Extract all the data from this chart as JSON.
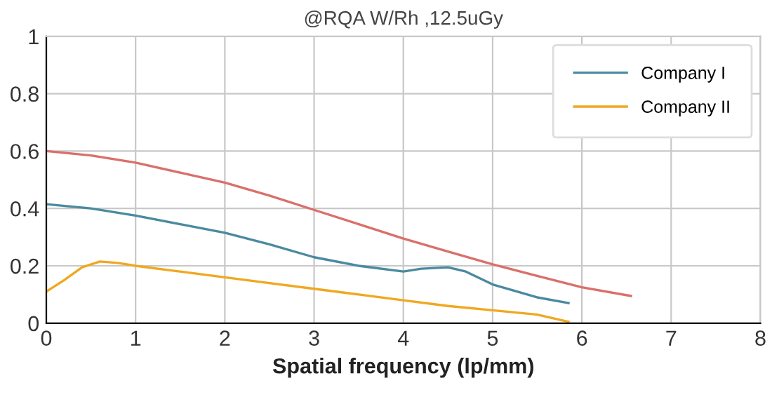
{
  "chart_data": {
    "type": "line",
    "title": "@RQA W/Rh ,12.5uGy",
    "xlabel": "Spatial frequency (lp/mm)",
    "xlim": [
      0,
      8
    ],
    "xticks": [
      0,
      1,
      2,
      3,
      4,
      5,
      6,
      7,
      8
    ],
    "ylim": [
      0,
      1
    ],
    "yticks": [
      0,
      0.2,
      0.4,
      0.6,
      0.8,
      1
    ],
    "grid": true,
    "legend": "top right",
    "marker": "none",
    "line_style": "solid",
    "series": [
      {
        "color": "#d9706a",
        "x": [
          0,
          0.5,
          1,
          1.5,
          2,
          2.5,
          3,
          3.5,
          4,
          4.5,
          5,
          5.5,
          6,
          6.55
        ],
        "values": [
          0.6,
          0.585,
          0.56,
          0.525,
          0.49,
          0.445,
          0.395,
          0.345,
          0.295,
          0.25,
          0.205,
          0.165,
          0.125,
          0.095
        ]
      },
      {
        "name": "Company I",
        "color": "#4a8aa0",
        "x": [
          0,
          0.5,
          1,
          1.5,
          2,
          2.5,
          3,
          3.5,
          4,
          4.2,
          4.5,
          4.7,
          5,
          5.5,
          5.85
        ],
        "values": [
          0.415,
          0.4,
          0.375,
          0.345,
          0.315,
          0.275,
          0.23,
          0.2,
          0.18,
          0.19,
          0.195,
          0.18,
          0.135,
          0.09,
          0.07
        ]
      },
      {
        "name": "Company II",
        "color": "#f0a820",
        "x": [
          0,
          0.2,
          0.4,
          0.6,
          0.8,
          1,
          1.5,
          2,
          2.5,
          3,
          3.5,
          4,
          4.5,
          5,
          5.5,
          5.85
        ],
        "values": [
          0.11,
          0.15,
          0.195,
          0.215,
          0.21,
          0.2,
          0.18,
          0.16,
          0.14,
          0.12,
          0.1,
          0.08,
          0.06,
          0.045,
          0.03,
          0.005
        ]
      }
    ]
  }
}
